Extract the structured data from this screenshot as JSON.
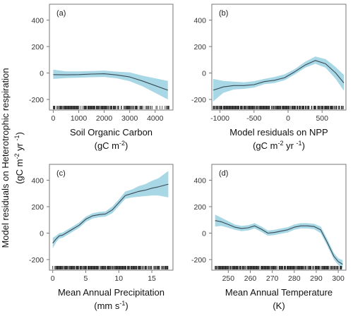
{
  "figure": {
    "ylabel_line1": "Model residuals on Heterotrophic respiration",
    "ylabel_line2": "(gC m",
    "ylabel_sup": "-2",
    "ylabel_mid": " yr ",
    "ylabel_sup2": "-1",
    "ylabel_end": ")"
  },
  "colors": {
    "band": "#a8d8e6",
    "line": "#3a4a55",
    "rug": "#111111",
    "frame": "#777777"
  },
  "chart_data": [
    {
      "type": "area",
      "panel": "(a)",
      "xlabel_line1": "Soil Organic Carbon",
      "xlabel_line2_pre": "(gC m",
      "xlabel_line2_sup": "-2",
      "xlabel_line2_post": ")",
      "xlim": [
        -150,
        4700
      ],
      "ylim": [
        -280,
        520
      ],
      "xticks": [
        0,
        1000,
        2000,
        3000,
        4000
      ],
      "yticks": [
        -200,
        0,
        200,
        400
      ],
      "show_yticks": true,
      "x": [
        0,
        500,
        1000,
        1500,
        2000,
        2500,
        3000,
        3500,
        4000,
        4500
      ],
      "y": [
        -12,
        -14,
        -12,
        -8,
        -6,
        -15,
        -30,
        -60,
        -95,
        -130
      ],
      "lower": [
        -45,
        -38,
        -35,
        -32,
        -30,
        -40,
        -62,
        -100,
        -150,
        -200
      ],
      "upper": [
        25,
        12,
        12,
        15,
        18,
        10,
        5,
        -20,
        -40,
        -60
      ],
      "rug_range": [
        0,
        4600
      ]
    },
    {
      "type": "area",
      "panel": "(b)",
      "xlabel_line1": "Model residuals on NPP",
      "xlabel_line2_pre": "(gC m",
      "xlabel_line2_sup": "-2",
      "xlabel_line2_post": " yr ",
      "xlabel_line2_sup2": "-1",
      "xlabel_line2_post2": ")",
      "xlim": [
        -1120,
        850
      ],
      "ylim": [
        -280,
        520
      ],
      "xticks": [
        -1000,
        -500,
        0,
        500
      ],
      "yticks": [
        -200,
        0,
        200,
        400
      ],
      "show_yticks": false,
      "x": [
        -1100,
        -950,
        -800,
        -650,
        -500,
        -350,
        -200,
        -50,
        100,
        250,
        400,
        550,
        700,
        820
      ],
      "y": [
        -130,
        -105,
        -95,
        -95,
        -88,
        -65,
        -55,
        -35,
        10,
        60,
        95,
        70,
        0,
        -75
      ],
      "lower": [
        -215,
        -150,
        -125,
        -120,
        -110,
        -85,
        -75,
        -55,
        -10,
        40,
        70,
        40,
        -45,
        -135
      ],
      "upper": [
        -45,
        -60,
        -65,
        -70,
        -62,
        -45,
        -30,
        -10,
        30,
        85,
        125,
        105,
        45,
        -15
      ],
      "rug_range": [
        -1100,
        820
      ]
    },
    {
      "type": "area",
      "panel": "(c)",
      "xlabel_line1": "Mean Annual Precipitation",
      "xlabel_line2_pre": "(mm s",
      "xlabel_line2_sup": "-1",
      "xlabel_line2_post": ")",
      "xlim": [
        -0.5,
        18.2
      ],
      "ylim": [
        -280,
        520
      ],
      "xticks": [
        0,
        5,
        10,
        15
      ],
      "yticks": [
        -200,
        0,
        200,
        400
      ],
      "show_yticks": true,
      "x": [
        0,
        0.5,
        1,
        1.5,
        2,
        3,
        4,
        5,
        6,
        7,
        8,
        9,
        10,
        11,
        12,
        13,
        14,
        15,
        16,
        17.5
      ],
      "y": [
        -75,
        -45,
        -20,
        -15,
        0,
        30,
        60,
        105,
        130,
        140,
        145,
        175,
        230,
        285,
        300,
        315,
        325,
        340,
        350,
        370
      ],
      "lower": [
        -115,
        -70,
        -40,
        -35,
        -20,
        10,
        40,
        85,
        110,
        120,
        125,
        150,
        205,
        260,
        270,
        275,
        280,
        285,
        285,
        270
      ],
      "upper": [
        -35,
        -20,
        0,
        5,
        20,
        50,
        80,
        125,
        150,
        160,
        165,
        200,
        255,
        315,
        330,
        355,
        370,
        395,
        415,
        470
      ],
      "rug_range": [
        0,
        17.5
      ]
    },
    {
      "type": "area",
      "panel": "(d)",
      "xlabel_line1": "Mean Annual Temperature",
      "xlabel_line2_pre": "(K)",
      "xlabel_line2_sup": "",
      "xlabel_line2_post": "",
      "xlim": [
        242.5,
        303.5
      ],
      "ylim": [
        -280,
        520
      ],
      "xticks": [
        250,
        260,
        270,
        280,
        290,
        300
      ],
      "yticks": [
        -200,
        0,
        200,
        400
      ],
      "show_yticks": false,
      "x": [
        244,
        247,
        250,
        253,
        256,
        259,
        262,
        265,
        268,
        271,
        274,
        277,
        280,
        283,
        286,
        289,
        292,
        295,
        298,
        300,
        302
      ],
      "y": [
        95,
        85,
        65,
        45,
        35,
        40,
        55,
        30,
        0,
        5,
        15,
        25,
        45,
        55,
        55,
        50,
        25,
        -70,
        -175,
        -215,
        -235
      ],
      "lower": [
        50,
        55,
        40,
        25,
        15,
        20,
        35,
        10,
        -20,
        -15,
        -5,
        5,
        25,
        35,
        35,
        30,
        0,
        -95,
        -200,
        -240,
        -265
      ],
      "upper": [
        140,
        115,
        90,
        65,
        55,
        60,
        75,
        50,
        20,
        25,
        35,
        45,
        65,
        75,
        75,
        70,
        50,
        -45,
        -150,
        -190,
        -205
      ],
      "rug_range": [
        244,
        302
      ]
    }
  ]
}
